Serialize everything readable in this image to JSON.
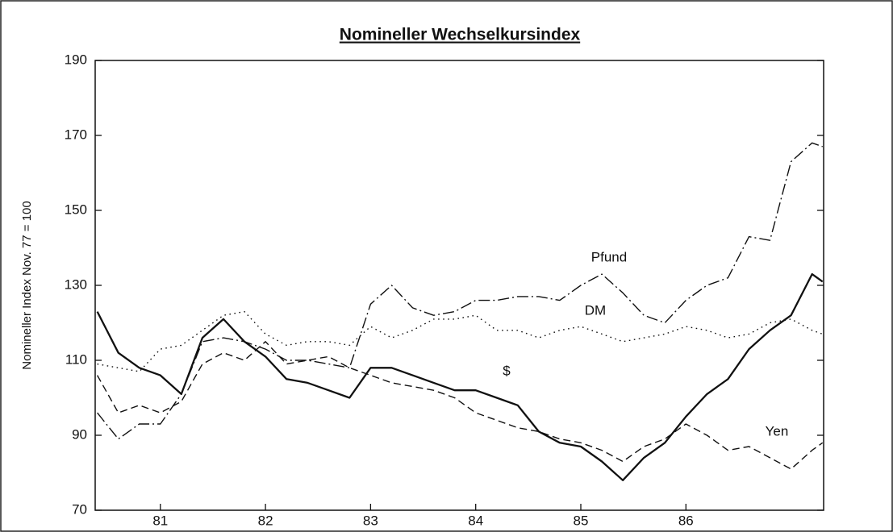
{
  "chart_data": {
    "type": "line",
    "title": "Nomineller Wechselkursindex",
    "ylabel": "Nomineller Index Nov. 77 = 100",
    "x": [
      80.4,
      80.6,
      80.8,
      81.0,
      81.2,
      81.4,
      81.6,
      81.8,
      82.0,
      82.2,
      82.4,
      82.6,
      82.8,
      83.0,
      83.2,
      83.4,
      83.6,
      83.8,
      84.0,
      84.2,
      84.4,
      84.6,
      84.8,
      85.0,
      85.2,
      85.4,
      85.6,
      85.8,
      86.0,
      86.2,
      86.4,
      86.6,
      86.8,
      87.0,
      87.2,
      87.3
    ],
    "series": [
      {
        "name": "Pfund",
        "color": "#111111",
        "style": "dash-dot",
        "values": [
          96,
          89,
          93,
          93,
          101,
          115,
          116,
          115,
          113,
          110,
          110,
          109,
          108,
          125,
          130,
          124,
          122,
          123,
          126,
          126,
          127,
          127,
          126,
          130,
          133,
          128,
          122,
          120,
          126,
          130,
          132,
          143,
          142,
          163,
          168,
          167
        ]
      },
      {
        "name": "DM",
        "color": "#111111",
        "style": "dotted",
        "values": [
          109,
          108,
          107,
          113,
          114,
          118,
          122,
          123,
          117,
          114,
          115,
          115,
          114,
          119,
          116,
          118,
          121,
          121,
          122,
          118,
          118,
          116,
          118,
          119,
          117,
          115,
          116,
          117,
          119,
          118,
          116,
          117,
          120,
          121,
          118,
          117
        ]
      },
      {
        "name": "$",
        "color": "#111111",
        "style": "solid",
        "values": [
          123,
          112,
          108,
          106,
          101,
          116,
          121,
          115,
          111,
          105,
          104,
          102,
          100,
          108,
          108,
          106,
          104,
          102,
          102,
          100,
          98,
          91,
          88,
          87,
          83,
          78,
          84,
          88,
          95,
          101,
          105,
          113,
          118,
          122,
          133,
          131
        ]
      },
      {
        "name": "Yen",
        "color": "#111111",
        "style": "dashed",
        "values": [
          106,
          96,
          98,
          96,
          99,
          109,
          112,
          110,
          115,
          109,
          110,
          111,
          108,
          106,
          104,
          103,
          102,
          100,
          96,
          94,
          92,
          91,
          89,
          88,
          86,
          83,
          87,
          89,
          93,
          90,
          86,
          87,
          84,
          81,
          86,
          88
        ]
      }
    ],
    "xlim": [
      80.38,
      87.31
    ],
    "xticks": [
      81,
      82,
      83,
      84,
      85,
      86
    ],
    "ylim": [
      70,
      190
    ],
    "yticks": [
      70,
      90,
      110,
      130,
      150,
      170,
      190
    ]
  }
}
